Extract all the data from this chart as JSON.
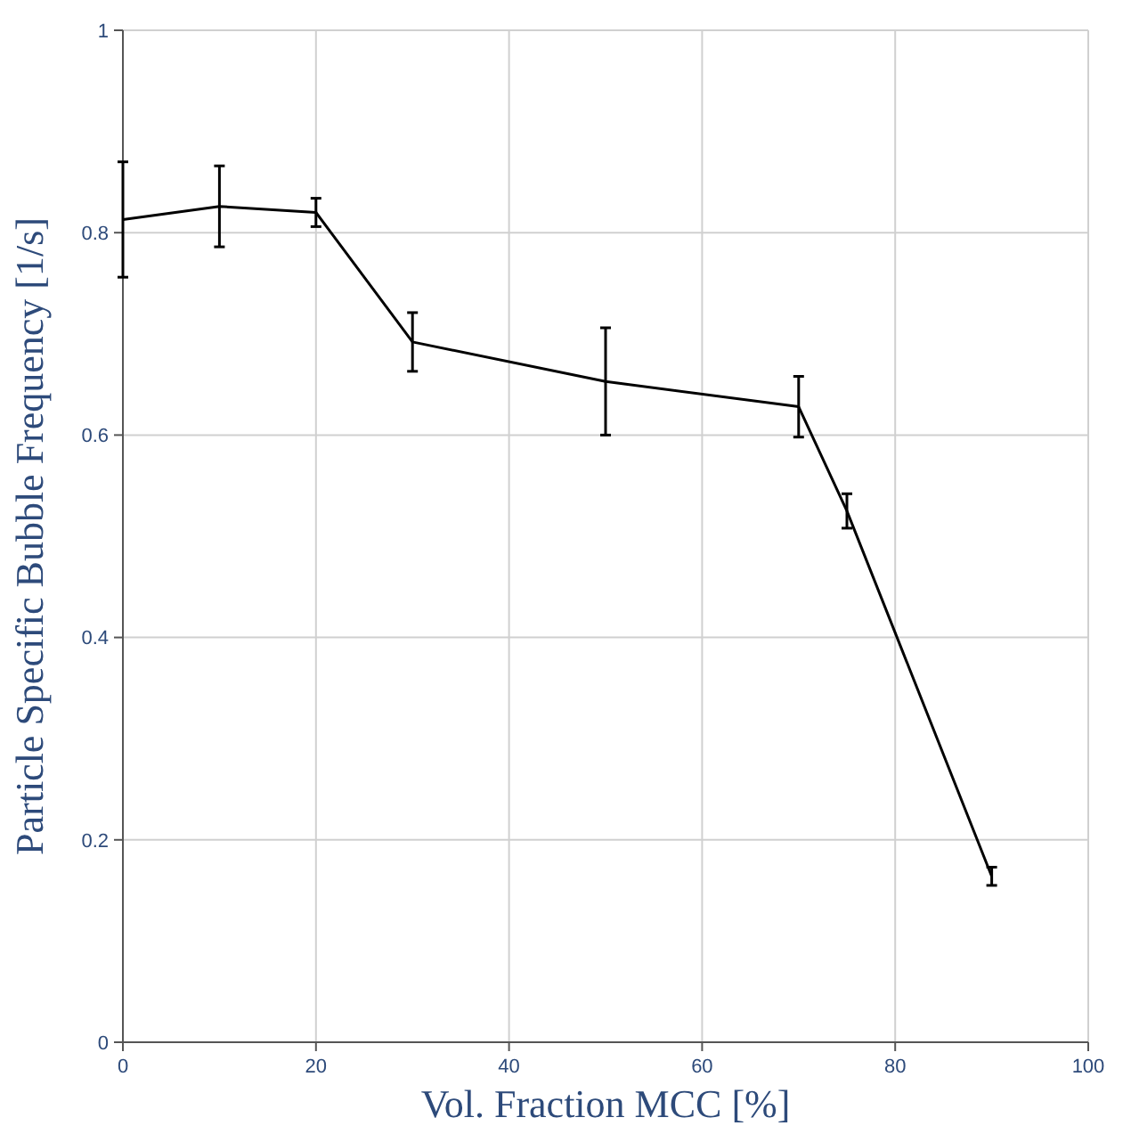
{
  "chart_data": {
    "type": "line",
    "xlabel": "Vol. Fraction MCC [%]",
    "ylabel": "Particle Specific Bubble Frequency [1/s]",
    "x": [
      0,
      10,
      20,
      30,
      50,
      70,
      75,
      90
    ],
    "series": [
      {
        "color": "#000000",
        "values": [
          0.813,
          0.826,
          0.82,
          0.692,
          0.653,
          0.628,
          0.525,
          0.164
        ],
        "errors": [
          0.057,
          0.04,
          0.014,
          0.029,
          0.053,
          0.03,
          0.017,
          0.009
        ]
      }
    ],
    "xlim": [
      0,
      100
    ],
    "xticks": [
      0,
      20,
      40,
      60,
      80,
      100
    ],
    "ylim": [
      0,
      1
    ],
    "yticks": [
      0,
      0.2,
      0.4,
      0.6,
      0.8,
      1
    ],
    "grid": true,
    "marker": "none",
    "line_style": "solid"
  }
}
